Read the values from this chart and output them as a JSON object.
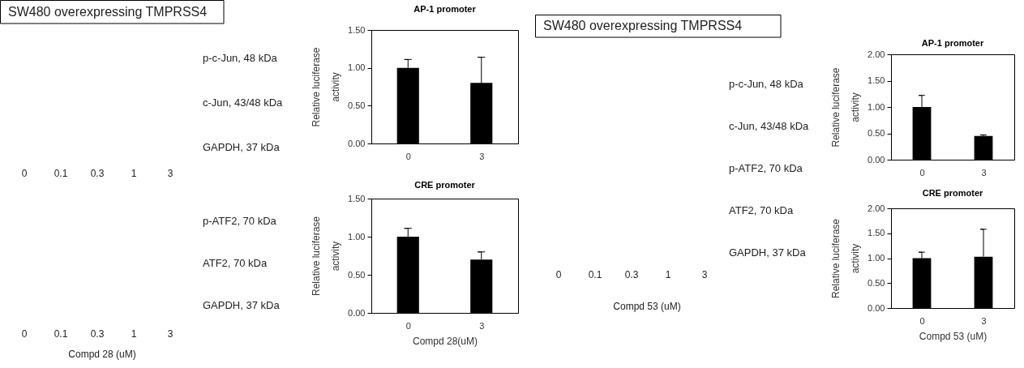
{
  "chart_data": [
    {
      "type": "other",
      "title": "SW480 overexpressing TMPRSS4",
      "categories": [
        "0",
        "0.1",
        "0.3",
        "1",
        "3"
      ],
      "annotations": [
        "p-c-Jun, 48 kDa",
        "c-Jun, 43/48 kDa",
        "GAPDH, 37 kDa"
      ]
    },
    {
      "type": "other",
      "categories": [
        "0",
        "0.1",
        "0.3",
        "1",
        "3"
      ],
      "annotations": [
        "p-ATF2, 70 kDa",
        "ATF2, 70 kDa",
        "GAPDH, 37 kDa"
      ],
      "xlabel": "Compd 28 (uM)"
    },
    {
      "type": "bar",
      "title": "AP-1 promoter",
      "categories": [
        "0",
        "3"
      ],
      "values": [
        1.0,
        0.8
      ],
      "errors": [
        [
          1.0,
          1.11
        ],
        [
          0.8,
          1.14
        ]
      ],
      "color": "#000000",
      "ylabel": "Relative luciferase activity",
      "ylim": [
        0,
        1.5
      ],
      "yticks": [
        {
          "value": 0,
          "label": "0.00"
        },
        {
          "value": 0.5,
          "label": "0.50"
        },
        {
          "value": 1,
          "label": "1.00"
        },
        {
          "value": 1.5,
          "label": "1.50"
        }
      ]
    },
    {
      "type": "bar",
      "title": "CRE promoter",
      "categories": [
        "0",
        "3"
      ],
      "values": [
        1.0,
        0.7
      ],
      "errors": [
        [
          1.0,
          1.11
        ],
        [
          0.7,
          0.8
        ]
      ],
      "color": "#000000",
      "xlabel": "Compd 28(uM)",
      "ylabel": "Relative luciferase activity",
      "ylim": [
        0,
        1.5
      ],
      "yticks": [
        {
          "value": 0,
          "label": "0.00"
        },
        {
          "value": 0.5,
          "label": "0.50"
        },
        {
          "value": 1,
          "label": "1.00"
        },
        {
          "value": 1.5,
          "label": "1.50"
        }
      ]
    },
    {
      "type": "other",
      "title": "SW480 overexpressing TMPRSS4",
      "categories": [
        "0",
        "0.1",
        "0.3",
        "1",
        "3"
      ],
      "annotations": [
        "p-c-Jun, 48 kDa",
        "c-Jun, 43/48 kDa",
        "p-ATF2, 70 kDa",
        "ATF2, 70 kDa",
        "GAPDH, 37 kDa"
      ],
      "xlabel": "Compd 53 (uM)"
    },
    {
      "type": "bar",
      "title": "AP-1 promoter",
      "categories": [
        "0",
        "3"
      ],
      "values": [
        1.0,
        0.45
      ],
      "errors": [
        [
          1.0,
          1.22
        ],
        [
          0.45,
          0.47
        ]
      ],
      "color": "#000000",
      "ylabel": "Relative luciferase activity",
      "ylim": [
        0,
        2
      ],
      "yticks": [
        {
          "value": 0,
          "label": "0.00"
        },
        {
          "value": 0.5,
          "label": "0.50"
        },
        {
          "value": 1,
          "label": "1.00"
        },
        {
          "value": 1.5,
          "label": "1.50"
        },
        {
          "value": 2,
          "label": "2.00"
        }
      ]
    },
    {
      "type": "bar",
      "title": "CRE promoter",
      "categories": [
        "0",
        "3"
      ],
      "values": [
        1.0,
        1.03
      ],
      "errors": [
        [
          1.0,
          1.12
        ],
        [
          1.03,
          1.58
        ]
      ],
      "color": "#000000",
      "xlabel": "Compd 53 (uM)",
      "ylabel": "Relative luciferase activity",
      "ylim": [
        0,
        2
      ],
      "yticks": [
        {
          "value": 0,
          "label": "0.00"
        },
        {
          "value": 0.5,
          "label": "0.50"
        },
        {
          "value": 1,
          "label": "1.00"
        },
        {
          "value": 1.5,
          "label": "1.50"
        },
        {
          "value": 2,
          "label": "2.00"
        }
      ]
    }
  ]
}
